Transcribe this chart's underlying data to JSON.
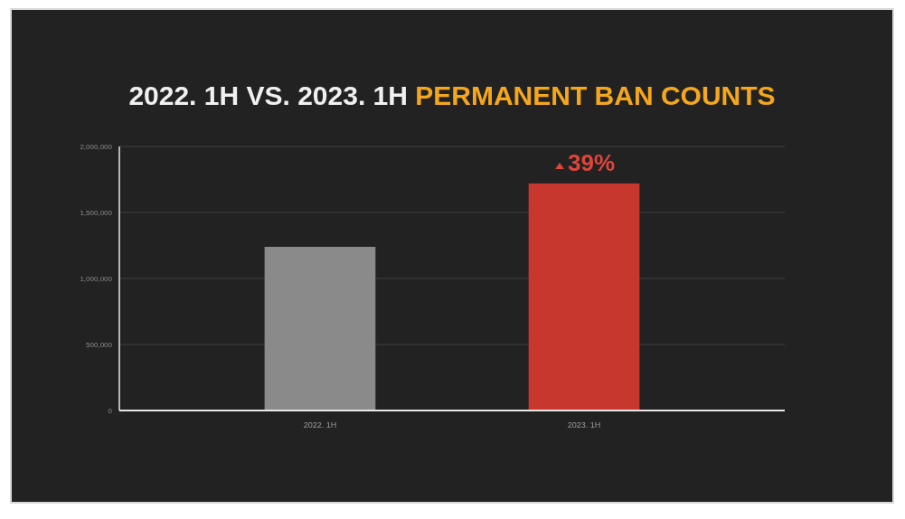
{
  "chart_data": {
    "type": "bar",
    "title": "2022. 1H VS. 2023. 1H PERMANENT BAN COUNTS",
    "categories": [
      "2022. 1H",
      "2023. 1H"
    ],
    "values": [
      1240000,
      1720000
    ],
    "colors": [
      "#8a8a8a",
      "#c8372d"
    ],
    "ylim": [
      0,
      2000000
    ],
    "yticks": [
      {
        "value": 0,
        "label": "0"
      },
      {
        "value": 500000,
        "label": "500,000"
      },
      {
        "value": 1000000,
        "label": "1,000,000"
      },
      {
        "value": 1500000,
        "label": "1,500,000"
      },
      {
        "value": 2000000,
        "label": "2,000,000"
      }
    ],
    "grid": "y",
    "annotations": [
      {
        "text": "39%",
        "x": "2023. 1H",
        "y": 1720000
      }
    ]
  }
}
